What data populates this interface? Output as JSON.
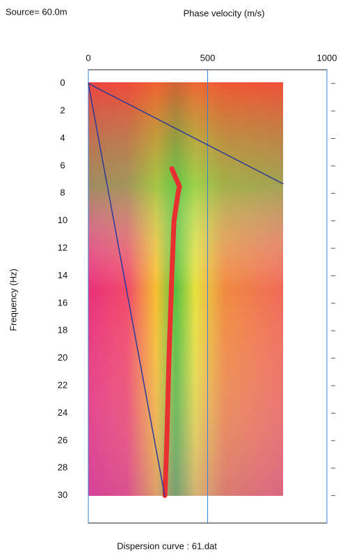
{
  "chart_data": {
    "type": "dispersion",
    "title": "Source= 60.0m",
    "x_label": "Phase velocity (m/s)",
    "y_label": "Frequency (Hz)",
    "caption": "Dispersion curve : 61.dat",
    "xlim": [
      0,
      1000
    ],
    "xticks": [
      0,
      500,
      1000
    ],
    "ylim": [
      -1,
      32
    ],
    "yticks": [
      0,
      2,
      4,
      6,
      8,
      10,
      12,
      14,
      16,
      18,
      20,
      22,
      24,
      26,
      28,
      30
    ],
    "y_inverted": true,
    "grid_color": "#3a7fd8",
    "series": [
      {
        "color": "#e83030",
        "width": 7,
        "x": [
          350,
          382,
          376,
          359,
          350,
          338,
          329,
          321
        ],
        "values": [
          6.2,
          7.5,
          8,
          10,
          14,
          20,
          26,
          30
        ]
      },
      {
        "color": "#2a3a9a",
        "width": 1.5,
        "x": [
          0,
          816
        ],
        "values": [
          0,
          7.3
        ]
      },
      {
        "color": "#2a3a9a",
        "width": 1.5,
        "x": [
          0,
          320
        ],
        "values": [
          0,
          30
        ]
      }
    ]
  }
}
